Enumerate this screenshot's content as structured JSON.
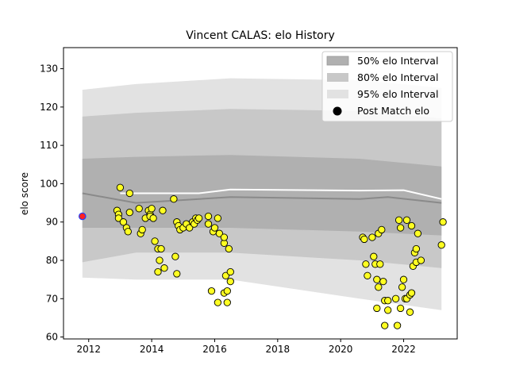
{
  "chart_data": {
    "type": "scatter",
    "title": "Vincent CALAS: elo History",
    "xlabel": "",
    "ylabel": "elo score",
    "xlim": [
      2011.2,
      2023.7
    ],
    "ylim": [
      59.5,
      135.5
    ],
    "xticks": [
      2012,
      2014,
      2016,
      2018,
      2020,
      2022
    ],
    "yticks": [
      60,
      70,
      80,
      90,
      100,
      110,
      120,
      130
    ],
    "grid": false,
    "legend_position": "top-right",
    "legend": [
      {
        "label": "50% elo Interval",
        "color": "#b0b0b0"
      },
      {
        "label": "80% elo Interval",
        "color": "#c8c8c8"
      },
      {
        "label": "95% elo Interval",
        "color": "#e2e2e2"
      },
      {
        "label": "Post Match elo",
        "color": "#000000"
      }
    ],
    "bands": {
      "x": [
        2011.8,
        2013.5,
        2016.5,
        2020.6,
        2023.2
      ],
      "b95_upper": [
        124.5,
        126,
        127.5,
        127,
        125
      ],
      "b95_lower": [
        75.5,
        75,
        75,
        70,
        67
      ],
      "b80_upper": [
        117.5,
        118.5,
        119.5,
        119,
        117
      ],
      "b80_lower": [
        79.5,
        82,
        82,
        80,
        78
      ],
      "b50_upper": [
        106.5,
        107,
        107.5,
        106.5,
        104.5
      ],
      "b50_lower": [
        88.5,
        88.5,
        88.5,
        87.5,
        86.5
      ]
    },
    "median_line": {
      "x": [
        2011.8,
        2013.5,
        2014.5,
        2016.5,
        2020.6,
        2021.5,
        2023.2
      ],
      "y": [
        97.5,
        95,
        95.5,
        96.5,
        96,
        96.5,
        95
      ]
    },
    "mean_line": {
      "x": [
        2013.0,
        2014.0,
        2015.5,
        2016.5,
        2020.6,
        2022.0,
        2023.2
      ],
      "y": [
        97.5,
        97.5,
        97.5,
        98.5,
        98.2,
        98.3,
        96
      ]
    },
    "start_point": {
      "x": 2011.8,
      "y": 91.5
    },
    "points": [
      [
        2012.9,
        93
      ],
      [
        2012.95,
        92
      ],
      [
        2013.0,
        99
      ],
      [
        2012.95,
        91
      ],
      [
        2013.1,
        90
      ],
      [
        2013.2,
        88.5
      ],
      [
        2013.25,
        87.5
      ],
      [
        2013.3,
        92.5
      ],
      [
        2013.3,
        97.5
      ],
      [
        2013.6,
        93.5
      ],
      [
        2013.65,
        87
      ],
      [
        2013.7,
        88
      ],
      [
        2013.8,
        91
      ],
      [
        2013.9,
        93
      ],
      [
        2013.95,
        92
      ],
      [
        2013.95,
        91.5
      ],
      [
        2014.0,
        93.5
      ],
      [
        2014.05,
        91
      ],
      [
        2014.1,
        85
      ],
      [
        2014.2,
        83
      ],
      [
        2014.25,
        80
      ],
      [
        2014.3,
        83
      ],
      [
        2014.2,
        77
      ],
      [
        2014.4,
        78
      ],
      [
        2014.35,
        93
      ],
      [
        2014.7,
        96
      ],
      [
        2014.75,
        81
      ],
      [
        2014.8,
        90
      ],
      [
        2014.8,
        76.5
      ],
      [
        2014.85,
        89
      ],
      [
        2014.9,
        88
      ],
      [
        2015.0,
        88.5
      ],
      [
        2015.1,
        89.5
      ],
      [
        2015.2,
        88.5
      ],
      [
        2015.3,
        90
      ],
      [
        2015.35,
        89.5
      ],
      [
        2015.4,
        91
      ],
      [
        2015.45,
        90.5
      ],
      [
        2015.5,
        91
      ],
      [
        2015.8,
        91.5
      ],
      [
        2015.8,
        89.5
      ],
      [
        2015.9,
        72
      ],
      [
        2015.95,
        87.5
      ],
      [
        2016.0,
        88.5
      ],
      [
        2016.1,
        69
      ],
      [
        2016.1,
        91
      ],
      [
        2016.15,
        87
      ],
      [
        2016.3,
        84.5
      ],
      [
        2016.3,
        86
      ],
      [
        2016.3,
        71.5
      ],
      [
        2016.35,
        76
      ],
      [
        2016.4,
        72
      ],
      [
        2016.45,
        83
      ],
      [
        2016.5,
        77
      ],
      [
        2016.5,
        74.5
      ],
      [
        2016.4,
        69
      ],
      [
        2020.7,
        86
      ],
      [
        2020.75,
        85.5
      ],
      [
        2020.8,
        79
      ],
      [
        2020.85,
        76
      ],
      [
        2021.0,
        86
      ],
      [
        2021.05,
        81
      ],
      [
        2021.1,
        79
      ],
      [
        2021.15,
        75
      ],
      [
        2021.2,
        87
      ],
      [
        2021.25,
        79
      ],
      [
        2021.3,
        88
      ],
      [
        2021.35,
        74.5
      ],
      [
        2021.4,
        69.5
      ],
      [
        2021.15,
        67.5
      ],
      [
        2021.2,
        73
      ],
      [
        2021.4,
        63
      ],
      [
        2021.5,
        67
      ],
      [
        2021.5,
        69.5
      ],
      [
        2021.75,
        70
      ],
      [
        2021.8,
        63
      ],
      [
        2021.85,
        90.5
      ],
      [
        2021.9,
        88.5
      ],
      [
        2021.9,
        67.5
      ],
      [
        2021.95,
        73
      ],
      [
        2022.0,
        75
      ],
      [
        2022.05,
        70
      ],
      [
        2022.1,
        90.5
      ],
      [
        2022.1,
        70
      ],
      [
        2022.2,
        71
      ],
      [
        2022.2,
        66.5
      ],
      [
        2022.25,
        89
      ],
      [
        2022.25,
        71.5
      ],
      [
        2022.3,
        78.5
      ],
      [
        2022.35,
        82
      ],
      [
        2022.4,
        79.5
      ],
      [
        2022.4,
        83
      ],
      [
        2022.45,
        87
      ],
      [
        2022.55,
        80
      ],
      [
        2023.2,
        84
      ],
      [
        2023.25,
        90
      ]
    ]
  }
}
